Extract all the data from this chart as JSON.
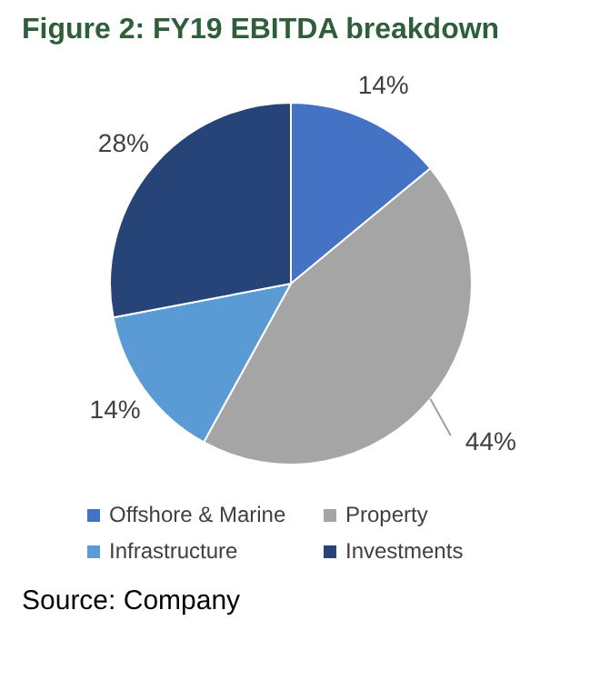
{
  "chart_data": {
    "type": "pie",
    "title": "Figure 2: FY19 EBITDA breakdown",
    "categories": [
      "Offshore & Marine",
      "Property",
      "Infrastructure",
      "Investments"
    ],
    "values": [
      14,
      44,
      14,
      28
    ],
    "colors": [
      "#4472c4",
      "#a5a5a5",
      "#5b9bd5",
      "#264478"
    ],
    "value_labels": [
      "14%",
      "44%",
      "14%",
      "28%"
    ],
    "legend": "bottom",
    "annotations": [
      "Source: Company"
    ]
  }
}
